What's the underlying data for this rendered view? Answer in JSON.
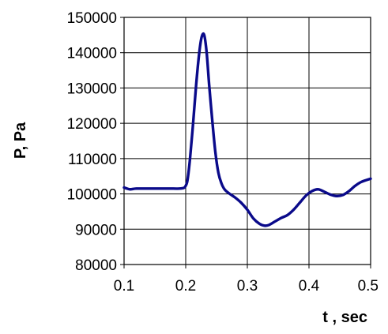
{
  "chart_data": {
    "type": "line",
    "title": "",
    "xlabel": "t , sec",
    "ylabel": "P, Pa",
    "xlim": [
      0.1,
      0.5
    ],
    "ylim": [
      80000,
      150000
    ],
    "x_ticks": [
      "0.1",
      "0.2",
      "0.3",
      "0.4",
      "0.5"
    ],
    "y_ticks": [
      "80000",
      "90000",
      "100000",
      "110000",
      "120000",
      "130000",
      "140000",
      "150000"
    ],
    "grid": true,
    "legend": "none",
    "series_color": "#0a0a8a",
    "series": [
      {
        "x": [
          0.1,
          0.105,
          0.11,
          0.12,
          0.14,
          0.16,
          0.18,
          0.19,
          0.197,
          0.2,
          0.203,
          0.207,
          0.212,
          0.217,
          0.222,
          0.226,
          0.23,
          0.234,
          0.238,
          0.243,
          0.248,
          0.253,
          0.258,
          0.263,
          0.27,
          0.28,
          0.29,
          0.3,
          0.31,
          0.32,
          0.328,
          0.335,
          0.345,
          0.355,
          0.365,
          0.375,
          0.385,
          0.395,
          0.405,
          0.415,
          0.425,
          0.435,
          0.445,
          0.455,
          0.465,
          0.475,
          0.485,
          0.5
        ],
        "y": [
          101800,
          101500,
          101300,
          101500,
          101500,
          101500,
          101500,
          101500,
          101700,
          102300,
          104000,
          110000,
          120000,
          131000,
          140000,
          144500,
          145000,
          140000,
          131000,
          121000,
          112000,
          106000,
          103000,
          101300,
          100200,
          99000,
          97500,
          95500,
          93000,
          91500,
          91000,
          91200,
          92200,
          93200,
          94000,
          95500,
          97500,
          99500,
          100800,
          101300,
          100600,
          99800,
          99400,
          99700,
          100800,
          102300,
          103400,
          104300
        ]
      }
    ]
  }
}
